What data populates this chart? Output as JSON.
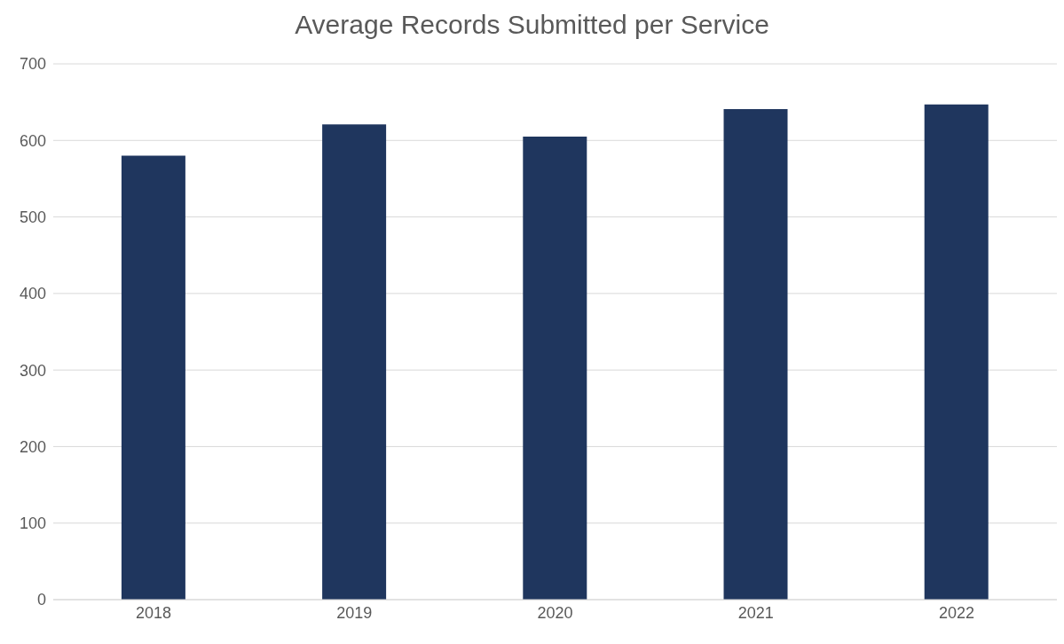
{
  "chart_data": {
    "type": "bar",
    "title": "Average Records Submitted per Service",
    "categories": [
      "2018",
      "2019",
      "2020",
      "2021",
      "2022"
    ],
    "values": [
      580,
      621,
      605,
      641,
      647
    ],
    "color": "#1f365e",
    "ylim": [
      0,
      700
    ],
    "yticks": [
      0,
      100,
      200,
      300,
      400,
      500,
      600,
      700
    ],
    "grid": "y"
  }
}
